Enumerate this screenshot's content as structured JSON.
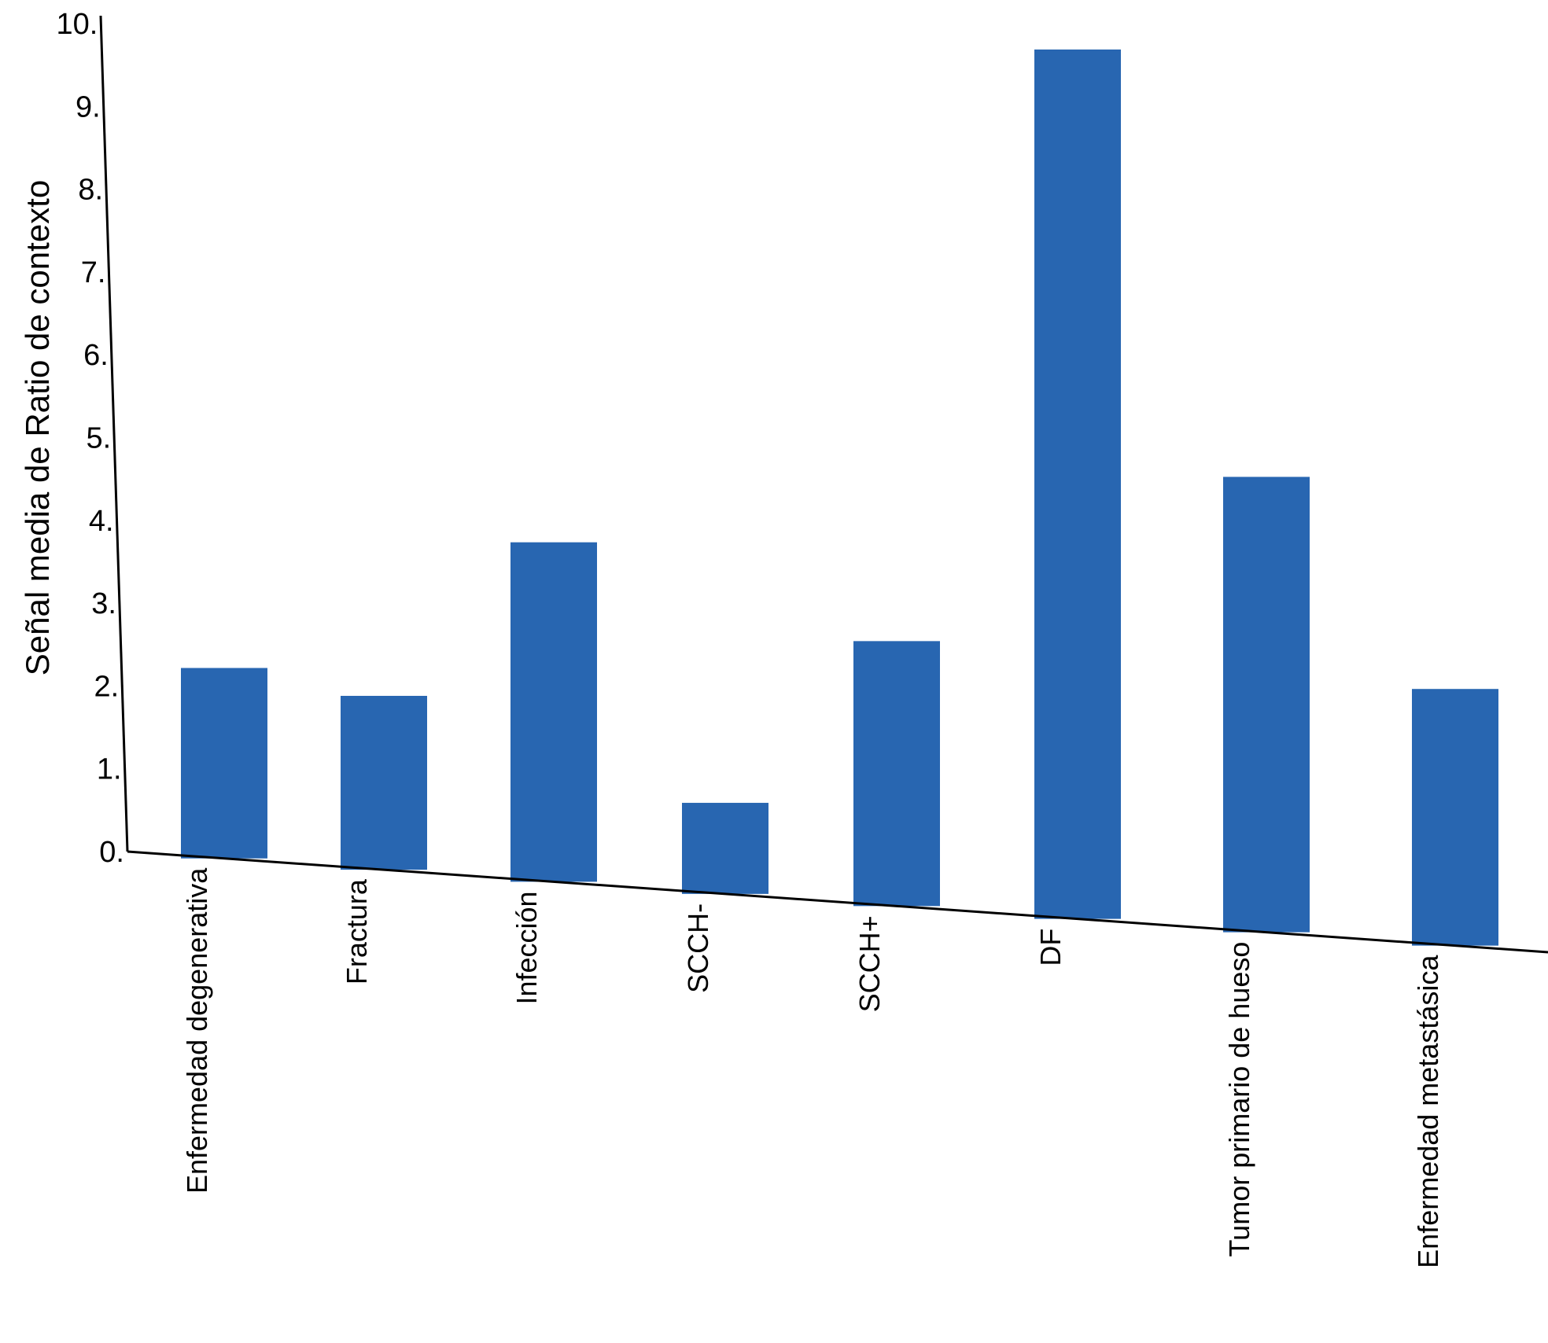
{
  "chart_data": {
    "type": "bar",
    "title": "",
    "xlabel": "",
    "ylabel": "Señal media de Ratio de contexto",
    "ylim": [
      0,
      10
    ],
    "grid": false,
    "legend": "none",
    "bar_color": "#2866B1",
    "axis_color": "#000000",
    "y_ticks": [
      {
        "value": 0,
        "label": "0."
      },
      {
        "value": 1,
        "label": "1."
      },
      {
        "value": 2,
        "label": "2."
      },
      {
        "value": 3,
        "label": "3."
      },
      {
        "value": 4,
        "label": "4."
      },
      {
        "value": 5,
        "label": "5."
      },
      {
        "value": 6,
        "label": "6."
      },
      {
        "value": 7,
        "label": "7."
      },
      {
        "value": 8,
        "label": "8."
      },
      {
        "value": 9,
        "label": "9."
      },
      {
        "value": 10,
        "label": "10."
      }
    ],
    "categories": [
      "Enfermedad degenerativa",
      "Fractura",
      "Infección",
      "SCCH-",
      "SCCH+",
      "DF",
      "Tumor primario de hueso",
      "Enfermedad metastásica"
    ],
    "values": [
      2.3,
      2.1,
      4.1,
      1.1,
      3.2,
      10.5,
      5.5,
      3.1
    ]
  }
}
